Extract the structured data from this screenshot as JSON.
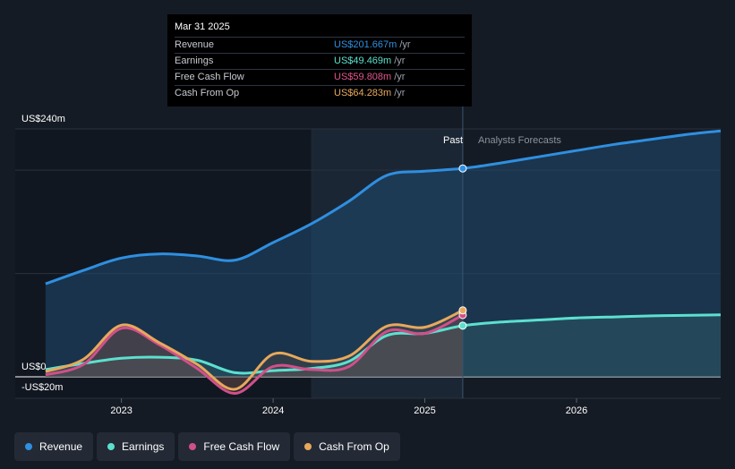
{
  "tooltip": {
    "date": "Mar 31 2025",
    "rows": [
      {
        "label": "Revenue",
        "value": "US$201.667m",
        "unit": "/yr",
        "color": "#2f8fe0"
      },
      {
        "label": "Earnings",
        "value": "US$49.469m",
        "unit": "/yr",
        "color": "#5ce0cf"
      },
      {
        "label": "Free Cash Flow",
        "value": "US$59.808m",
        "unit": "/yr",
        "color": "#e0558c"
      },
      {
        "label": "Cash From Op",
        "value": "US$64.283m",
        "unit": "/yr",
        "color": "#e8a85c"
      }
    ]
  },
  "legend": [
    {
      "label": "Revenue",
      "color": "#2f8fe0"
    },
    {
      "label": "Earnings",
      "color": "#5ce0cf"
    },
    {
      "label": "Free Cash Flow",
      "color": "#d0508a"
    },
    {
      "label": "Cash From Op",
      "color": "#e8a85c"
    }
  ],
  "chart_data": {
    "type": "line",
    "y_axis_labels": [
      "US$240m",
      "US$0",
      "-US$20m"
    ],
    "ylim": [
      -20,
      240
    ],
    "x_tick_labels": [
      "2023",
      "2024",
      "2025",
      "2026"
    ],
    "xlim": [
      2022.3,
      2026.95
    ],
    "past_label": "Past",
    "forecast_label": "Analysts Forecasts",
    "past_start": 2024.25,
    "past_end": 2025.25,
    "grid": true,
    "series": [
      {
        "name": "Revenue",
        "color": "#2f8fe0",
        "x": [
          2022.5,
          2022.75,
          2023.0,
          2023.25,
          2023.5,
          2023.75,
          2024.0,
          2024.25,
          2024.5,
          2024.75,
          2025.0,
          2025.25,
          2025.5,
          2025.75,
          2026.0,
          2026.25,
          2026.5,
          2026.75,
          2026.95
        ],
        "y": [
          90,
          103,
          115,
          119,
          117,
          113,
          130,
          148,
          170,
          195,
          199,
          201.7,
          207,
          213,
          219,
          225,
          230,
          235,
          238
        ]
      },
      {
        "name": "Earnings",
        "color": "#5ce0cf",
        "x": [
          2022.5,
          2022.75,
          2023.0,
          2023.25,
          2023.5,
          2023.75,
          2024.0,
          2024.25,
          2024.5,
          2024.75,
          2025.0,
          2025.25,
          2025.5,
          2025.75,
          2026.0,
          2026.25,
          2026.5,
          2026.75,
          2026.95
        ],
        "y": [
          7,
          13,
          18,
          19,
          16,
          4,
          6,
          8,
          15,
          40,
          42,
          49.5,
          53,
          55,
          57,
          58,
          59,
          59.5,
          60
        ]
      },
      {
        "name": "Free Cash Flow",
        "color": "#d0508a",
        "x": [
          2022.5,
          2022.75,
          2023.0,
          2023.25,
          2023.5,
          2023.75,
          2024.0,
          2024.25,
          2024.5,
          2024.75,
          2025.0,
          2025.25
        ],
        "y": [
          2,
          12,
          47,
          31,
          8,
          -16,
          10,
          7,
          10,
          44,
          42,
          59.8
        ]
      },
      {
        "name": "Cash From Op",
        "color": "#e8a85c",
        "x": [
          2022.5,
          2022.75,
          2023.0,
          2023.25,
          2023.5,
          2023.75,
          2024.0,
          2024.25,
          2024.5,
          2024.75,
          2025.0,
          2025.25
        ],
        "y": [
          5,
          17,
          50,
          33,
          12,
          -12,
          22,
          15,
          20,
          49,
          48,
          64.3
        ]
      }
    ]
  }
}
